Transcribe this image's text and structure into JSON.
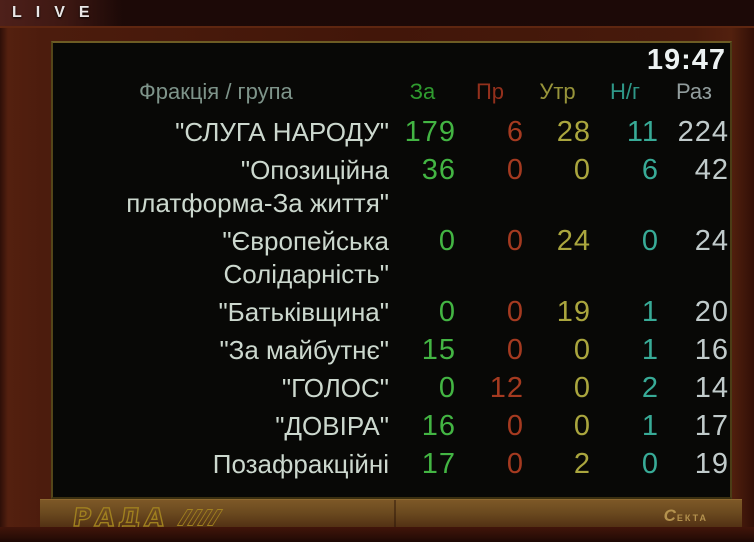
{
  "live": {
    "label": "LIVE"
  },
  "screen": {
    "clock": "19:47",
    "table": {
      "name_header": "Фракція / група",
      "columns": [
        {
          "label": "За",
          "color": "#2f9b2f",
          "value_color": "#43b543"
        },
        {
          "label": "Пр",
          "color": "#93301c",
          "value_color": "#a53a20"
        },
        {
          "label": "Утр",
          "color": "#97943a",
          "value_color": "#aaa63e"
        },
        {
          "label": "Н/г",
          "color": "#2e9787",
          "value_color": "#38ab97"
        },
        {
          "label": "Раз",
          "color": "#929d9d",
          "value_color": "#c1cbcb"
        }
      ],
      "rows": [
        {
          "name": "\"СЛУГА НАРОДУ\"",
          "lines": [
            "\"СЛУГА НАРОДУ\""
          ],
          "values": [
            179,
            6,
            28,
            11,
            224
          ]
        },
        {
          "name": "\"Опозиційна платформа-За життя\"",
          "lines": [
            "\"Опозиційна",
            "платформа-За життя\""
          ],
          "values": [
            36,
            0,
            0,
            6,
            42
          ]
        },
        {
          "name": "\"Європейська Солідарність\"",
          "lines": [
            "\"Європейська",
            "Солідарність\""
          ],
          "values": [
            0,
            0,
            24,
            0,
            24
          ]
        },
        {
          "name": "\"Батьківщина\"",
          "lines": [
            "\"Батьківщина\""
          ],
          "values": [
            0,
            0,
            19,
            1,
            20
          ]
        },
        {
          "name": "\"За майбутнє\"",
          "lines": [
            "\"За майбутнє\""
          ],
          "values": [
            15,
            0,
            0,
            1,
            16
          ]
        },
        {
          "name": "\"ГОЛОС\"",
          "lines": [
            "\"ГОЛОС\""
          ],
          "values": [
            0,
            12,
            0,
            2,
            14
          ]
        },
        {
          "name": "\"ДОВІРА\"",
          "lines": [
            "\"ДОВІРА\""
          ],
          "values": [
            16,
            0,
            0,
            1,
            17
          ]
        },
        {
          "name": "Позафракційні",
          "lines": [
            "Позафракційні"
          ],
          "values": [
            17,
            0,
            2,
            0,
            19
          ]
        }
      ]
    }
  },
  "footer": {
    "rada_text": "РАДА",
    "sekta_big": "C",
    "sekta_rest": "ЕКТА"
  }
}
